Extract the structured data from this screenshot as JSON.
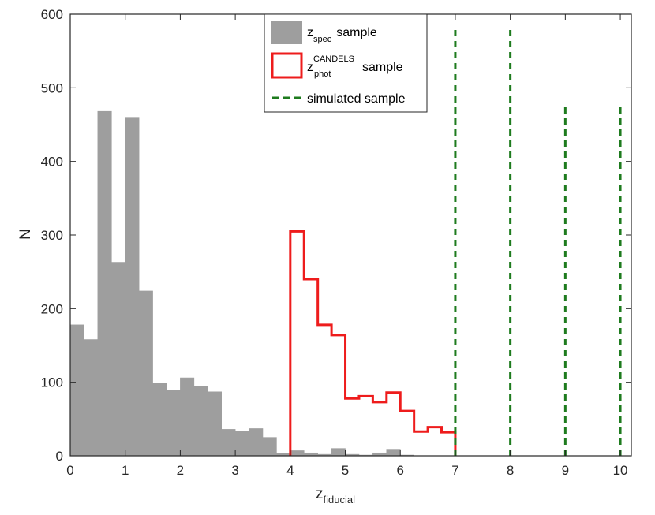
{
  "chart_data": {
    "type": "bar",
    "title": "",
    "xlabel": {
      "base": "z",
      "sub": "fiducial"
    },
    "ylabel": "N",
    "xlim": [
      0,
      10.2
    ],
    "ylim": [
      0,
      600
    ],
    "xticks": [
      "0",
      "1",
      "2",
      "3",
      "4",
      "5",
      "6",
      "7",
      "8",
      "9",
      "10"
    ],
    "yticks": [
      "0",
      "100",
      "200",
      "300",
      "400",
      "500",
      "600"
    ],
    "grid": false,
    "legend_position": "top-center",
    "colors": {
      "spec": "#9e9e9e",
      "phot": "#ee1c1c",
      "sim": "#1e7b1e",
      "axis": "#262626"
    },
    "series": [
      {
        "name": {
          "base": "z",
          "sub": "spec",
          "text": "sample"
        },
        "style": "filled-histogram",
        "bin_width": 0.25,
        "bin_starts": [
          0,
          0.25,
          0.5,
          0.75,
          1.0,
          1.25,
          1.5,
          1.75,
          2.0,
          2.25,
          2.5,
          2.75,
          3.0,
          3.25,
          3.5,
          3.75,
          4.0,
          4.25,
          4.5,
          4.75,
          5.0,
          5.25,
          5.5,
          5.75,
          6.0
        ],
        "values": [
          178,
          158,
          468,
          263,
          460,
          224,
          99,
          89,
          106,
          95,
          87,
          36,
          33,
          37,
          25,
          3,
          7,
          4,
          2,
          10,
          2,
          1,
          4,
          9,
          1
        ]
      },
      {
        "name": {
          "base": "z",
          "sub": "phot",
          "sup": "CANDELS",
          "text": "sample"
        },
        "style": "step-outline",
        "bin_width": 0.25,
        "bin_starts": [
          4.0,
          4.25,
          4.5,
          4.75,
          5.0,
          5.25,
          5.5,
          5.75,
          6.0,
          6.25,
          6.5,
          6.75
        ],
        "values": [
          305,
          240,
          178,
          164,
          78,
          81,
          73,
          86,
          61,
          33,
          39,
          32
        ]
      },
      {
        "name": {
          "text": "simulated sample"
        },
        "style": "dashed-vertical",
        "x": [
          7,
          8,
          9,
          10
        ],
        "values": [
          580,
          580,
          480,
          480
        ]
      }
    ]
  }
}
